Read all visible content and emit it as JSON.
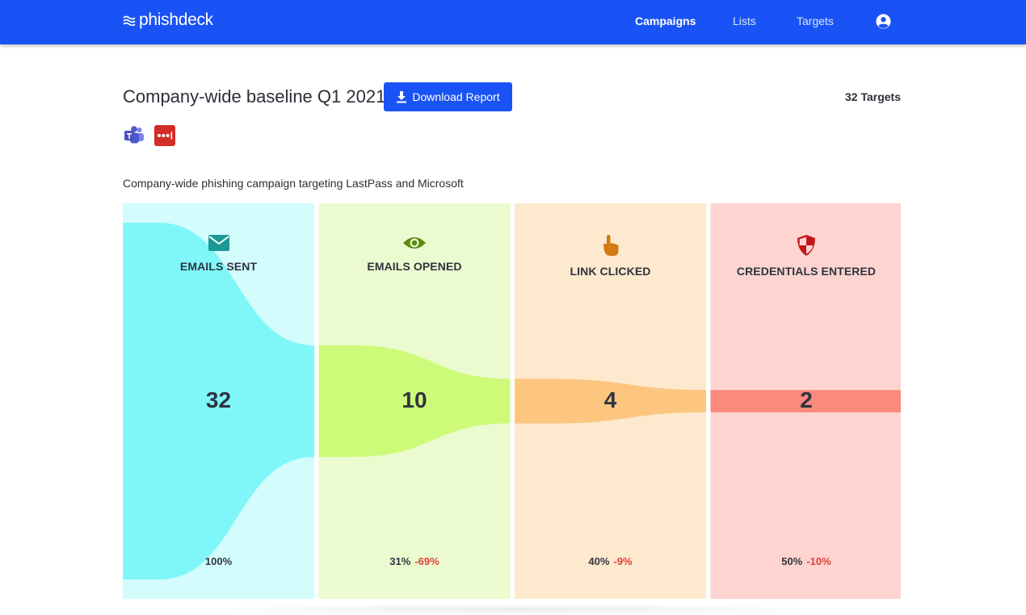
{
  "nav": {
    "brand": "phishdeck",
    "links": [
      {
        "label": "Campaigns",
        "active": true
      },
      {
        "label": "Lists",
        "active": false
      },
      {
        "label": "Targets",
        "active": false
      }
    ],
    "user_icon": "user-circle-icon"
  },
  "campaign": {
    "title": "Company-wide baseline Q1 2021",
    "download_label": "Download Report",
    "targets_label": "32 Targets",
    "icons": [
      "microsoft-teams-icon",
      "lastpass-icon"
    ],
    "description": "Company-wide phishing campaign targeting LastPass and Microsoft"
  },
  "funnel": {
    "stages": [
      {
        "label": "EMAILS SENT",
        "icon": "envelope-icon",
        "count": "32",
        "percent": "100%",
        "delta": "",
        "fraction": 1.0,
        "color": "#7ff7f9",
        "bg": "#d3fcfd",
        "icon_color": "#1a9a95"
      },
      {
        "label": "EMAILS OPENED",
        "icon": "eye-icon",
        "count": "10",
        "percent": "31%",
        "delta": "-69%",
        "fraction": 0.3125,
        "color": "#cdfb79",
        "bg": "#ebfbcf",
        "icon_color": "#5a8a0f"
      },
      {
        "label": "LINK CLICKED",
        "icon": "pointer-hand-icon",
        "count": "4",
        "percent": "40%",
        "delta": "-9%",
        "fraction": 0.125,
        "color": "#fdc67f",
        "bg": "#fde9cd",
        "icon_color": "#d17a12"
      },
      {
        "label": "CREDENTIALS ENTERED",
        "icon": "shield-icon",
        "count": "2",
        "percent": "50%",
        "delta": "-10%",
        "fraction": 0.0625,
        "color": "#f98a7d",
        "bg": "#fdd4cf",
        "icon_color": "#c4151a"
      }
    ]
  }
}
